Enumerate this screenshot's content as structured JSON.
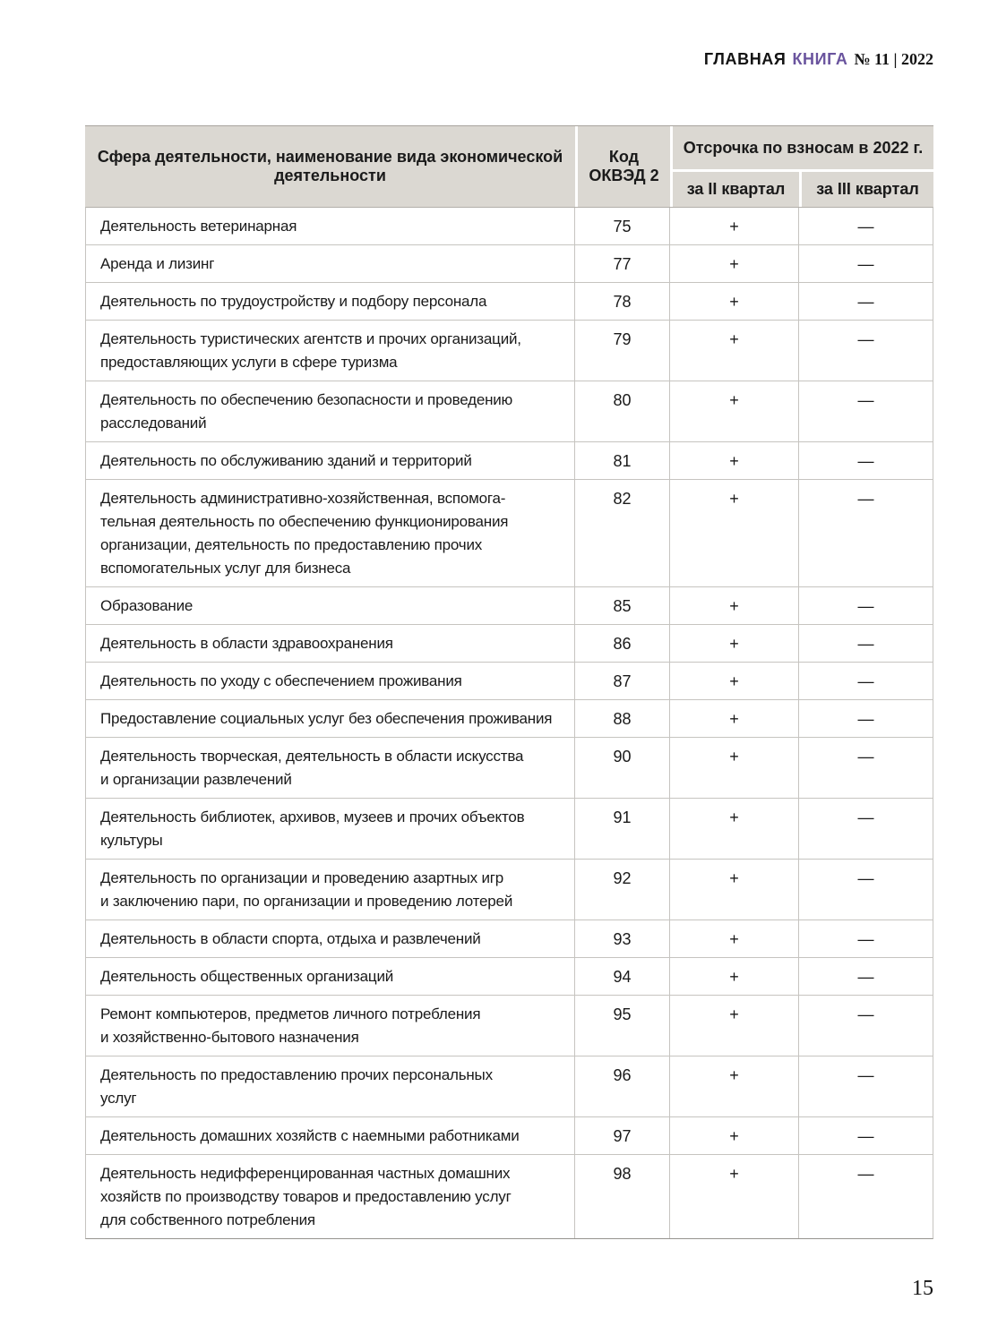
{
  "masthead": {
    "brand_black": "ГЛАВНАЯ",
    "brand_purple": "КНИГА",
    "issue": "№ 11 | 2022"
  },
  "colors": {
    "brand_purple": "#6a549e",
    "table_header_bg": "#dbd8d2",
    "table_border": "#c6c4c0"
  },
  "table": {
    "header": {
      "activity": "Сфера деятельности, наименование вида экономической деятельности",
      "code": "Код ОКВЭД 2",
      "deferral": "Отсрочка по взносам в 2022 г.",
      "q2": "за II квартал",
      "q3": "за III квартал"
    },
    "rows": [
      {
        "activity": "Деятельность ветеринарная",
        "code": "75",
        "q2": "+",
        "q3": "—"
      },
      {
        "activity": "Аренда и лизинг",
        "code": "77",
        "q2": "+",
        "q3": "—"
      },
      {
        "activity": "Деятельность по трудоустройству и подбору персонала",
        "code": "78",
        "q2": "+",
        "q3": "—"
      },
      {
        "activity": "Деятельность туристических агентств и прочих организаций,\nпредоставляющих услуги в сфере туризма",
        "code": "79",
        "q2": "+",
        "q3": "—"
      },
      {
        "activity": "Деятельность по обеспечению безопасности и проведению\nрасследований",
        "code": "80",
        "q2": "+",
        "q3": "—"
      },
      {
        "activity": "Деятельность по обслуживанию зданий и территорий",
        "code": "81",
        "q2": "+",
        "q3": "—"
      },
      {
        "activity": "Деятельность административно-хозяйственная, вспомога-\nтельная деятельность по обеспечению функционирования\nорганизации, деятельность по предоставлению прочих\nвспомогательных услуг для бизнеса",
        "code": "82",
        "q2": "+",
        "q3": "—"
      },
      {
        "activity": "Образование",
        "code": "85",
        "q2": "+",
        "q3": "—"
      },
      {
        "activity": "Деятельность в области здравоохранения",
        "code": "86",
        "q2": "+",
        "q3": "—"
      },
      {
        "activity": "Деятельность по уходу с обеспечением проживания",
        "code": "87",
        "q2": "+",
        "q3": "—"
      },
      {
        "activity": "Предоставление социальных услуг без обеспечения проживания",
        "code": "88",
        "q2": "+",
        "q3": "—"
      },
      {
        "activity": "Деятельность творческая, деятельность в области искусства\nи организации развлечений",
        "code": "90",
        "q2": "+",
        "q3": "—"
      },
      {
        "activity": "Деятельность библиотек, архивов, музеев и прочих объектов\nкультуры",
        "code": "91",
        "q2": "+",
        "q3": "—"
      },
      {
        "activity": "Деятельность по организации и проведению азартных игр\nи заключению пари, по организации и проведению лотерей",
        "code": "92",
        "q2": "+",
        "q3": "—"
      },
      {
        "activity": "Деятельность в области спорта, отдыха и развлечений",
        "code": "93",
        "q2": "+",
        "q3": "—"
      },
      {
        "activity": "Деятельность общественных организаций",
        "code": "94",
        "q2": "+",
        "q3": "—"
      },
      {
        "activity": "Ремонт компьютеров, предметов личного потребления\nи хозяйственно-бытового назначения",
        "code": "95",
        "q2": "+",
        "q3": "—"
      },
      {
        "activity": "Деятельность по предоставлению прочих персональных\nуслуг",
        "code": "96",
        "q2": "+",
        "q3": "—"
      },
      {
        "activity": "Деятельность домашних хозяйств с наемными работниками",
        "code": "97",
        "q2": "+",
        "q3": "—"
      },
      {
        "activity": "Деятельность недифференцированная частных домашних\nхозяйств по производству товаров и предоставлению услуг\nдля собственного потребления",
        "code": "98",
        "q2": "+",
        "q3": "—"
      }
    ]
  },
  "page_number": "15"
}
